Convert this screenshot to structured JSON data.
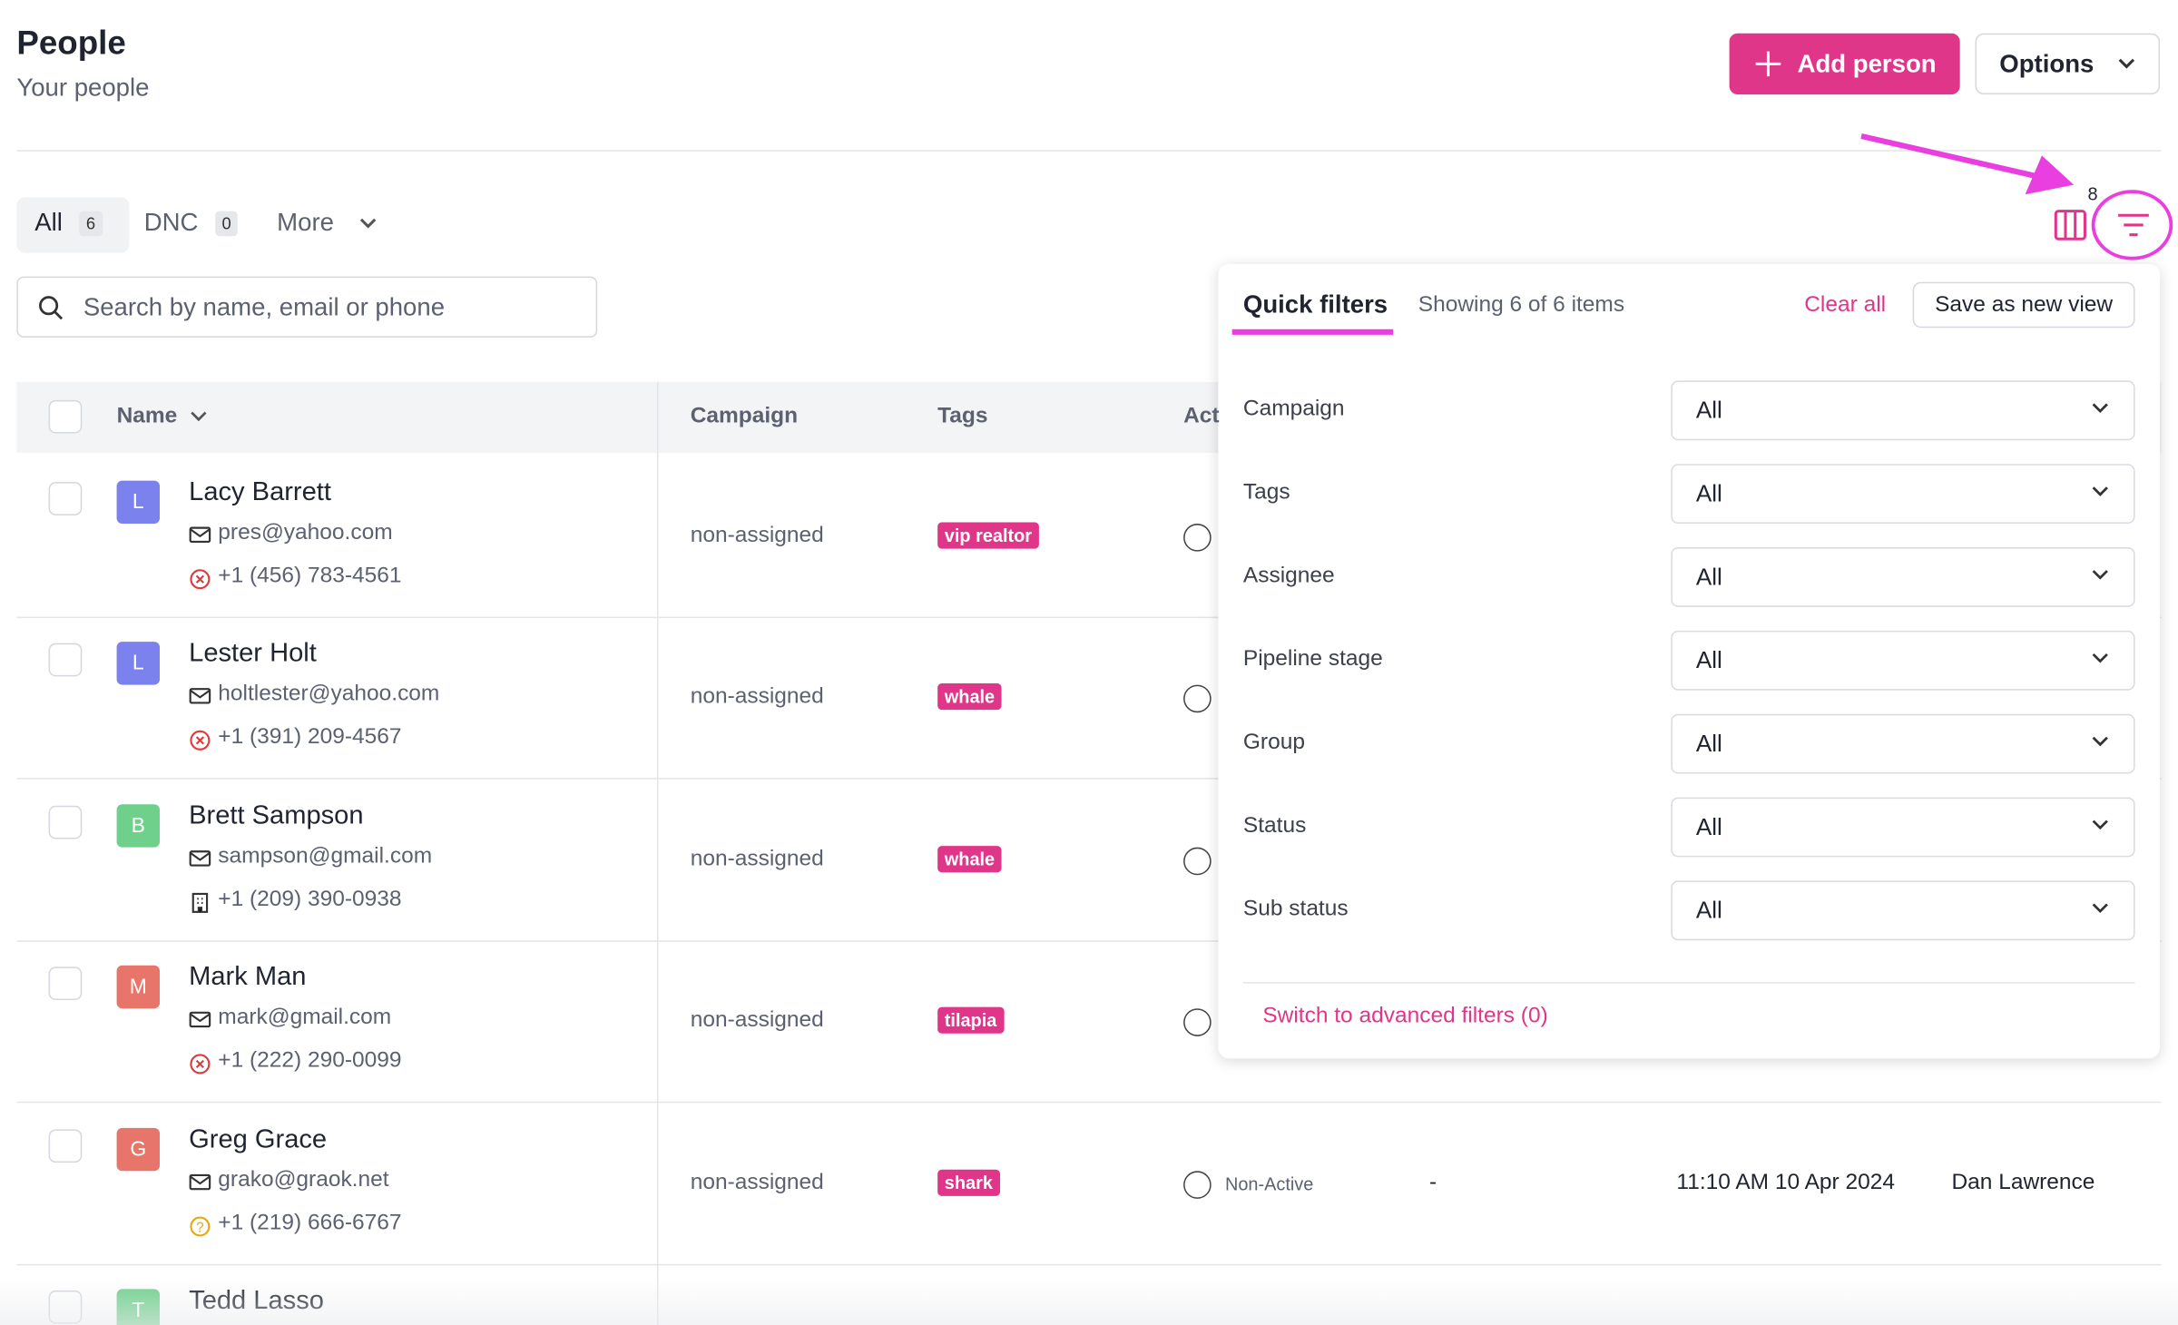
{
  "header": {
    "title": "People",
    "subtitle": "Your people",
    "add_button": "Add person",
    "options_button": "Options"
  },
  "tabs": [
    {
      "label": "All",
      "count": 6
    },
    {
      "label": "DNC",
      "count": 0
    },
    {
      "label": "More"
    }
  ],
  "filter_badge": 8,
  "search_placeholder": "Search by name, email or phone",
  "table": {
    "columns": [
      "Name",
      "Campaign",
      "Tags",
      "Act"
    ],
    "rows": [
      {
        "initial": "L",
        "name": "Lacy Barrett",
        "email": "pres@yahoo.com",
        "phone": "+1 (456) 783-4561",
        "campaign": "non-assigned",
        "tag": "vip realtor"
      },
      {
        "initial": "L",
        "name": "Lester Holt",
        "email": "holtlester@yahoo.com",
        "phone": "+1 (391) 209-4567",
        "campaign": "non-assigned",
        "tag": "whale"
      },
      {
        "initial": "B",
        "name": "Brett Sampson",
        "email": "sampson@gmail.com",
        "phone": "+1 (209) 390-0938",
        "campaign": "non-assigned",
        "tag": "whale"
      },
      {
        "initial": "M",
        "name": "Mark Man",
        "email": "mark@gmail.com",
        "phone": "+1 (222) 290-0099",
        "campaign": "non-assigned",
        "tag": "tilapia"
      },
      {
        "initial": "G",
        "name": "Greg Grace",
        "email": "grako@graok.net",
        "phone": "+1 (219) 666-6767",
        "campaign": "non-assigned",
        "tag": "shark",
        "status": "Non-Active",
        "last_activity": "-",
        "created": "11:10 AM 10 Apr 2024",
        "assignee": "Dan Lawrence"
      },
      {
        "initial": "T",
        "name": "Tedd Lasso"
      }
    ]
  },
  "quick_filters": {
    "title": "Quick filters",
    "showing": "Showing 6 of 6 items",
    "clear_all": "Clear all",
    "save_view": "Save as new view",
    "filters": [
      {
        "label": "Campaign",
        "value": "All"
      },
      {
        "label": "Tags",
        "value": "All"
      },
      {
        "label": "Assignee",
        "value": "All"
      },
      {
        "label": "Pipeline stage",
        "value": "All"
      },
      {
        "label": "Group",
        "value": "All"
      },
      {
        "label": "Status",
        "value": "All"
      },
      {
        "label": "Sub status",
        "value": "All"
      }
    ],
    "advanced": "Switch to advanced filters (0)"
  }
}
